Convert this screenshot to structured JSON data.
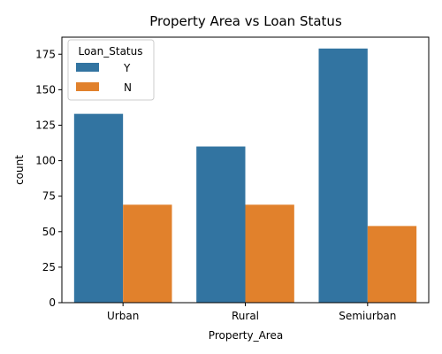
{
  "chart_data": {
    "type": "bar",
    "title": "Property Area vs Loan Status",
    "xlabel": "Property_Area",
    "ylabel": "count",
    "categories": [
      "Urban",
      "Rural",
      "Semiurban"
    ],
    "series": [
      {
        "name": "Y",
        "values": [
          133,
          110,
          179
        ],
        "color": "#3274a1"
      },
      {
        "name": "N",
        "values": [
          69,
          69,
          54
        ],
        "color": "#e1812c"
      }
    ],
    "ylim": [
      0,
      187
    ],
    "yticks": [
      0,
      25,
      50,
      75,
      100,
      125,
      150,
      175
    ],
    "legend": {
      "title": "Loan_Status",
      "placement": "upper-left"
    },
    "grid": false
  }
}
